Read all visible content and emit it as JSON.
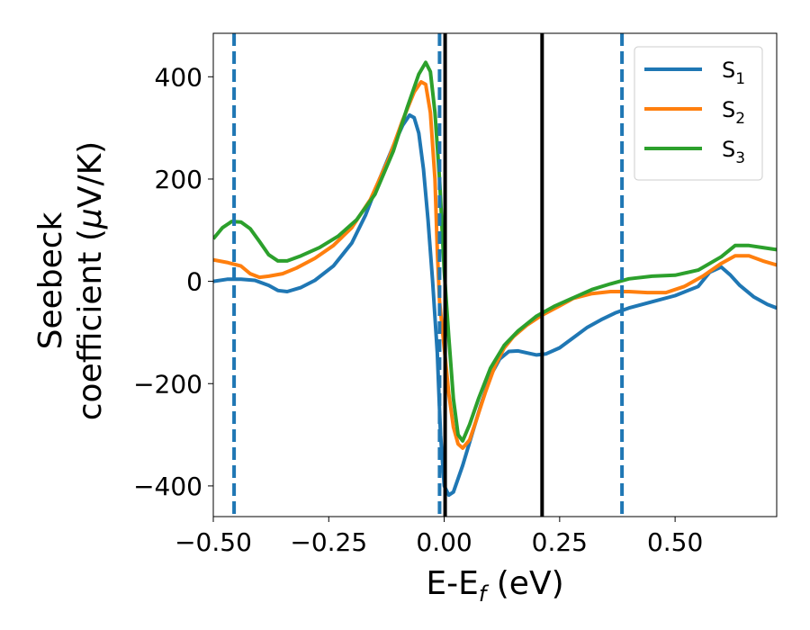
{
  "chart_data": {
    "type": "line",
    "xlabel": {
      "base": "E-E",
      "sub": "f",
      "tail": " (eV)"
    },
    "ylabel": {
      "line1": "Seebeck",
      "line2_pre": "coefficient  (",
      "line2_mu": "μ",
      "line2_post": "V/K)"
    },
    "xlim": [
      -0.5,
      0.72
    ],
    "ylim": [
      -460,
      485
    ],
    "xticks": [
      -0.5,
      -0.25,
      0.0,
      0.25,
      0.5
    ],
    "xtick_labels": [
      "−0.50",
      "−0.25",
      "0.00",
      "0.25",
      "0.50"
    ],
    "yticks": [
      -400,
      -200,
      0,
      200,
      400
    ],
    "ytick_labels": [
      "−400",
      "−200",
      "0",
      "200",
      "400"
    ],
    "grid": false,
    "legend_position": "top-right",
    "series": [
      {
        "name": "S1",
        "label_base": "S",
        "label_sub": "1",
        "color": "#1f77b4",
        "points": [
          [
            -0.5,
            0
          ],
          [
            -0.47,
            4
          ],
          [
            -0.44,
            4
          ],
          [
            -0.41,
            2
          ],
          [
            -0.38,
            -8
          ],
          [
            -0.36,
            -18
          ],
          [
            -0.34,
            -20
          ],
          [
            -0.31,
            -12
          ],
          [
            -0.28,
            2
          ],
          [
            -0.24,
            30
          ],
          [
            -0.2,
            75
          ],
          [
            -0.17,
            130
          ],
          [
            -0.14,
            200
          ],
          [
            -0.11,
            265
          ],
          [
            -0.09,
            305
          ],
          [
            -0.075,
            325
          ],
          [
            -0.065,
            320
          ],
          [
            -0.055,
            290
          ],
          [
            -0.045,
            220
          ],
          [
            -0.035,
            120
          ],
          [
            -0.025,
            0
          ],
          [
            -0.015,
            -140
          ],
          [
            -0.008,
            -300
          ],
          [
            0.0,
            -400
          ],
          [
            0.01,
            -418
          ],
          [
            0.02,
            -412
          ],
          [
            0.04,
            -360
          ],
          [
            0.06,
            -300
          ],
          [
            0.08,
            -240
          ],
          [
            0.1,
            -185
          ],
          [
            0.12,
            -152
          ],
          [
            0.14,
            -137
          ],
          [
            0.16,
            -136
          ],
          [
            0.18,
            -140
          ],
          [
            0.2,
            -144
          ],
          [
            0.22,
            -142
          ],
          [
            0.25,
            -130
          ],
          [
            0.28,
            -110
          ],
          [
            0.31,
            -90
          ],
          [
            0.34,
            -75
          ],
          [
            0.37,
            -62
          ],
          [
            0.4,
            -52
          ],
          [
            0.45,
            -40
          ],
          [
            0.5,
            -28
          ],
          [
            0.55,
            -10
          ],
          [
            0.575,
            18
          ],
          [
            0.6,
            28
          ],
          [
            0.62,
            12
          ],
          [
            0.64,
            -8
          ],
          [
            0.67,
            -30
          ],
          [
            0.7,
            -45
          ],
          [
            0.72,
            -52
          ]
        ]
      },
      {
        "name": "S2",
        "label_base": "S",
        "label_sub": "2",
        "color": "#ff7f0e",
        "points": [
          [
            -0.5,
            42
          ],
          [
            -0.47,
            37
          ],
          [
            -0.44,
            30
          ],
          [
            -0.42,
            15
          ],
          [
            -0.4,
            8
          ],
          [
            -0.38,
            10
          ],
          [
            -0.35,
            15
          ],
          [
            -0.32,
            26
          ],
          [
            -0.28,
            45
          ],
          [
            -0.24,
            70
          ],
          [
            -0.2,
            105
          ],
          [
            -0.16,
            160
          ],
          [
            -0.12,
            240
          ],
          [
            -0.09,
            315
          ],
          [
            -0.065,
            370
          ],
          [
            -0.05,
            390
          ],
          [
            -0.04,
            385
          ],
          [
            -0.03,
            330
          ],
          [
            -0.02,
            200
          ],
          [
            -0.015,
            60
          ],
          [
            -0.01,
            -40
          ],
          [
            0.0,
            -130
          ],
          [
            0.01,
            -220
          ],
          [
            0.02,
            -285
          ],
          [
            0.03,
            -318
          ],
          [
            0.04,
            -326
          ],
          [
            0.055,
            -310
          ],
          [
            0.07,
            -270
          ],
          [
            0.09,
            -215
          ],
          [
            0.11,
            -165
          ],
          [
            0.13,
            -130
          ],
          [
            0.15,
            -108
          ],
          [
            0.18,
            -85
          ],
          [
            0.21,
            -67
          ],
          [
            0.25,
            -48
          ],
          [
            0.28,
            -33
          ],
          [
            0.32,
            -24
          ],
          [
            0.36,
            -20
          ],
          [
            0.4,
            -20
          ],
          [
            0.44,
            -22
          ],
          [
            0.48,
            -22
          ],
          [
            0.52,
            -10
          ],
          [
            0.56,
            10
          ],
          [
            0.6,
            35
          ],
          [
            0.63,
            50
          ],
          [
            0.66,
            50
          ],
          [
            0.69,
            40
          ],
          [
            0.72,
            32
          ]
        ]
      },
      {
        "name": "S3",
        "label_base": "S",
        "label_sub": "3",
        "color": "#2ca02c",
        "points": [
          [
            -0.5,
            83
          ],
          [
            -0.48,
            105
          ],
          [
            -0.46,
            117
          ],
          [
            -0.44,
            116
          ],
          [
            -0.42,
            103
          ],
          [
            -0.4,
            78
          ],
          [
            -0.38,
            52
          ],
          [
            -0.36,
            40
          ],
          [
            -0.34,
            40
          ],
          [
            -0.31,
            50
          ],
          [
            -0.27,
            66
          ],
          [
            -0.23,
            88
          ],
          [
            -0.19,
            120
          ],
          [
            -0.15,
            170
          ],
          [
            -0.11,
            255
          ],
          [
            -0.08,
            340
          ],
          [
            -0.055,
            405
          ],
          [
            -0.04,
            428
          ],
          [
            -0.03,
            410
          ],
          [
            -0.02,
            330
          ],
          [
            -0.01,
            200
          ],
          [
            -0.005,
            110
          ],
          [
            0.0,
            20
          ],
          [
            0.01,
            -110
          ],
          [
            0.02,
            -230
          ],
          [
            0.03,
            -300
          ],
          [
            0.04,
            -312
          ],
          [
            0.055,
            -280
          ],
          [
            0.075,
            -228
          ],
          [
            0.1,
            -170
          ],
          [
            0.13,
            -125
          ],
          [
            0.16,
            -97
          ],
          [
            0.2,
            -68
          ],
          [
            0.24,
            -48
          ],
          [
            0.28,
            -32
          ],
          [
            0.32,
            -16
          ],
          [
            0.36,
            -5
          ],
          [
            0.4,
            5
          ],
          [
            0.45,
            10
          ],
          [
            0.5,
            12
          ],
          [
            0.55,
            22
          ],
          [
            0.6,
            48
          ],
          [
            0.63,
            70
          ],
          [
            0.66,
            70
          ],
          [
            0.69,
            66
          ],
          [
            0.72,
            62
          ]
        ]
      }
    ],
    "vlines": [
      {
        "x": -0.455,
        "style": "dashed",
        "color": "#1f77b4"
      },
      {
        "x": -0.01,
        "style": "dashed",
        "color": "#1f77b4"
      },
      {
        "x": 0.385,
        "style": "dashed",
        "color": "#1f77b4"
      },
      {
        "x": 0.002,
        "style": "solid",
        "color": "#000000"
      },
      {
        "x": 0.212,
        "style": "solid",
        "color": "#000000"
      }
    ]
  }
}
